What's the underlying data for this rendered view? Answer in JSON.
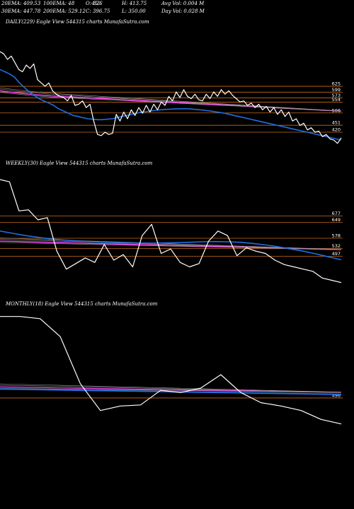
{
  "header": {
    "row1": [
      "20EMA: 409.53",
      "100EMA: 48",
      "O: 826",
      "H: 413.75",
      "Avg Vol: 0.004 M"
    ],
    "row1_overlap": "450",
    "row2": [
      "30EMA: 447.78",
      "200EMA: 529.12",
      "C: 396.75",
      "L: 350.00",
      "Day Vol: 0.028 M"
    ]
  },
  "colors": {
    "price": "#ffffff",
    "ema_fast": "#1f6fe0",
    "ema_slow": "#ff44ff",
    "level": "#cc6a1a",
    "background": "#000000"
  },
  "chart_data": [
    {
      "type": "line",
      "title": "DAILY(229) Eagle   View  544315 charts MunafaSutra.com",
      "levels": [
        "625",
        "599",
        "573",
        "554",
        "506",
        "451",
        "420"
      ],
      "level_values": [
        625,
        599,
        573,
        554,
        506,
        451,
        420
      ],
      "ylim": [
        300,
        900
      ],
      "series": [
        {
          "role": "price",
          "values": [
            780,
            770,
            745,
            760,
            730,
            700,
            690,
            720,
            705,
            725,
            655,
            640,
            625,
            640,
            605,
            590,
            580,
            575,
            560,
            585,
            540,
            545,
            560,
            530,
            545,
            470,
            410,
            405,
            420,
            410,
            415,
            500,
            470,
            510,
            480,
            520,
            495,
            530,
            505,
            540,
            510,
            545,
            520,
            555,
            540,
            580,
            560,
            600,
            575,
            610,
            580,
            570,
            590,
            565,
            560,
            590,
            570,
            600,
            580,
            610,
            590,
            605,
            585,
            570,
            555,
            560,
            540,
            550,
            530,
            545,
            520,
            535,
            510,
            530,
            500,
            520,
            490,
            510,
            470,
            480,
            450,
            460,
            430,
            440,
            420,
            425,
            400,
            410,
            390,
            385,
            370,
            395
          ]
        },
        {
          "role": "ema_fast",
          "values": [
            700,
            690,
            680,
            665,
            640,
            620,
            600,
            585,
            570,
            560,
            550,
            540,
            525,
            515,
            505,
            495,
            490,
            485,
            480,
            478,
            476,
            476,
            478,
            480,
            485,
            490,
            495,
            500,
            505,
            510,
            512,
            515,
            518,
            520,
            522,
            523,
            524,
            525,
            525,
            524,
            522,
            520,
            518,
            515,
            512,
            508,
            505,
            500,
            495,
            490,
            485,
            480,
            475,
            470,
            465,
            460,
            455,
            450,
            445,
            440,
            435,
            430,
            425,
            420,
            415,
            410,
            405,
            400,
            395,
            390,
            385
          ]
        },
        {
          "role": "ema_slow",
          "values": [
            605,
            600,
            596,
            592,
            588,
            585,
            582,
            580,
            578,
            576,
            574,
            572,
            570,
            568,
            566,
            564,
            562,
            560,
            558,
            556,
            554,
            552,
            550,
            548,
            546,
            544,
            542,
            540,
            538,
            536,
            534,
            532,
            530,
            528,
            526,
            524,
            522,
            520,
            518,
            516,
            514
          ]
        }
      ]
    },
    {
      "type": "line",
      "title": "WEEKLY(30) Eagle   View  544315 charts MunafaSutra.com",
      "levels": [
        "677",
        "649",
        "578",
        "532",
        "497"
      ],
      "level_values": [
        677,
        649,
        578,
        532,
        497
      ],
      "ylim": [
        300,
        900
      ],
      "series": [
        {
          "role": "price",
          "values": [
            840,
            830,
            700,
            705,
            660,
            670,
            520,
            440,
            465,
            490,
            470,
            550,
            480,
            505,
            450,
            590,
            640,
            510,
            530,
            470,
            450,
            465,
            565,
            610,
            590,
            500,
            535,
            520,
            510,
            480,
            460,
            450,
            440,
            430,
            400,
            390,
            380
          ]
        },
        {
          "role": "ema_fast",
          "values": [
            610,
            600,
            590,
            582,
            575,
            570,
            566,
            563,
            560,
            558,
            557,
            556,
            556,
            557,
            558,
            560,
            562,
            563,
            562,
            560,
            555,
            548,
            540,
            530,
            520,
            508,
            495,
            482
          ]
        },
        {
          "role": "ema_slow",
          "values": [
            565,
            563,
            561,
            559,
            557,
            555,
            553,
            551,
            549,
            547,
            545,
            543,
            541,
            539,
            537,
            535,
            533,
            531,
            529,
            527
          ]
        }
      ]
    },
    {
      "type": "line",
      "title": "MONTHLY(18) Eagle   View  544315 charts MunafaSutra.com",
      "levels": [
        "496"
      ],
      "level_values": [
        496
      ],
      "ylim": [
        300,
        900
      ],
      "series": [
        {
          "role": "price",
          "values": [
            860,
            860,
            850,
            770,
            560,
            440,
            460,
            465,
            530,
            520,
            540,
            600,
            520,
            475,
            460,
            440,
            400,
            380
          ]
        },
        {
          "role": "ema_fast",
          "values": [
            536,
            534,
            532,
            530,
            528,
            526,
            524,
            522,
            520,
            518,
            516,
            514,
            512
          ]
        },
        {
          "role": "ema_slow",
          "values": [
            545,
            543,
            541,
            539,
            537,
            535,
            533,
            531,
            529,
            527,
            525,
            523,
            521
          ]
        }
      ]
    }
  ]
}
